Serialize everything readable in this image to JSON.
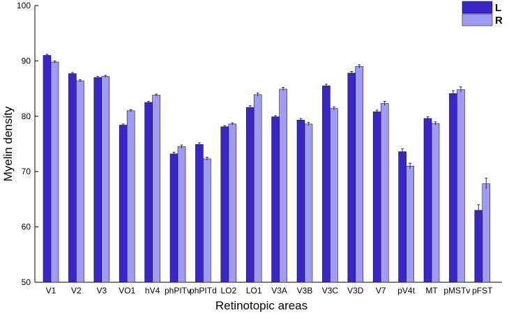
{
  "chart_data": {
    "type": "bar",
    "title": "",
    "xlabel": "Retinotopic areas",
    "ylabel": "Myelin density",
    "ylim": [
      50,
      100
    ],
    "yticks": [
      50,
      60,
      70,
      80,
      90,
      100
    ],
    "grid": false,
    "legend_position": "top-right",
    "categories": [
      "V1",
      "V2",
      "V3",
      "VO1",
      "hV4",
      "phPITv",
      "phPITd",
      "LO2",
      "LO1",
      "V3A",
      "V3B",
      "V3C",
      "V3D",
      "V7",
      "pV4t",
      "MT",
      "pMSTv",
      "pFST"
    ],
    "series": [
      {
        "name": "L",
        "color": "#3a26c8",
        "values": [
          91.0,
          87.7,
          87.0,
          78.4,
          82.5,
          73.2,
          74.9,
          78.1,
          81.6,
          79.9,
          79.3,
          85.5,
          87.8,
          80.8,
          73.6,
          79.6,
          84.1,
          63.0
        ],
        "errors": [
          0.2,
          0.2,
          0.2,
          0.2,
          0.2,
          0.3,
          0.3,
          0.2,
          0.3,
          0.2,
          0.3,
          0.3,
          0.3,
          0.3,
          0.5,
          0.3,
          0.5,
          1.0
        ]
      },
      {
        "name": "R",
        "color": "#a09cf4",
        "values": [
          89.8,
          86.4,
          87.2,
          81.0,
          83.8,
          74.5,
          72.3,
          78.6,
          83.9,
          84.9,
          78.6,
          81.4,
          89.0,
          82.3,
          71.0,
          78.7,
          84.8,
          67.8
        ],
        "errors": [
          0.2,
          0.2,
          0.2,
          0.2,
          0.2,
          0.3,
          0.3,
          0.2,
          0.3,
          0.3,
          0.3,
          0.3,
          0.3,
          0.4,
          0.5,
          0.3,
          0.5,
          1.0
        ]
      }
    ]
  }
}
